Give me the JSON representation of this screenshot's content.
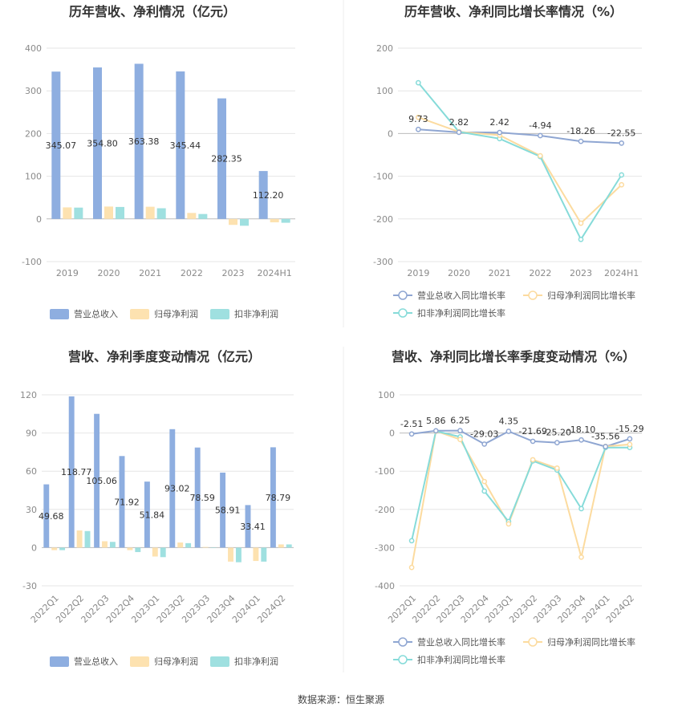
{
  "footer": {
    "source": "数据来源：恒生聚源"
  },
  "colors": {
    "revenue": "#8eaee0",
    "net_profit": "#fde2b0",
    "deducted": "#9fe0e0",
    "line_revenue": "#8fa6d2",
    "line_net": "#fcdb9f",
    "line_deducted": "#86dbd9"
  },
  "chart_data": [
    {
      "id": "annual_amount",
      "type": "bar",
      "title": "历年营收、净利情况（亿元）",
      "categories": [
        "2019",
        "2020",
        "2021",
        "2022",
        "2023",
        "2024H1"
      ],
      "ylim": [
        -100,
        400
      ],
      "yticks": [
        -100,
        0,
        100,
        200,
        300,
        400
      ],
      "legend": "bottom",
      "series": [
        {
          "name": "营业总收入",
          "values": [
            345.07,
            354.8,
            363.38,
            345.44,
            282.35,
            112.2
          ],
          "labels": [
            "345.07",
            "354.80",
            "363.38",
            "345.44",
            "282.35",
            "112.20"
          ]
        },
        {
          "name": "归母净利润",
          "values": [
            27.0,
            29.0,
            28.5,
            14.0,
            -14.0,
            -8.0
          ]
        },
        {
          "name": "扣非净利润",
          "values": [
            26.5,
            28.0,
            25.0,
            11.5,
            -16.0,
            -9.0
          ]
        }
      ]
    },
    {
      "id": "annual_growth",
      "type": "line",
      "title": "历年营收、净利同比增长率情况（%）",
      "categories": [
        "2019",
        "2020",
        "2021",
        "2022",
        "2023",
        "2024H1"
      ],
      "ylim": [
        -300,
        200
      ],
      "yticks": [
        -300,
        -200,
        -100,
        0,
        100,
        200
      ],
      "legend": "bottom",
      "series": [
        {
          "name": "营业总收入同比增长率",
          "values": [
            9.73,
            2.82,
            2.42,
            -4.94,
            -18.26,
            -22.55
          ],
          "labels": [
            "9.73",
            "2.82",
            "2.42",
            "-4.94",
            "-18.26",
            "-22.55"
          ]
        },
        {
          "name": "归母净利润同比增长率",
          "values": [
            38,
            4,
            -4,
            -52,
            -210,
            -120
          ]
        },
        {
          "name": "扣非净利润同比增长率",
          "values": [
            119,
            4,
            -12,
            -54,
            -248,
            -97
          ]
        }
      ]
    },
    {
      "id": "quarterly_amount",
      "type": "bar",
      "title": "营收、净利季度变动情况（亿元）",
      "categories": [
        "2022Q1",
        "2022Q2",
        "2022Q3",
        "2022Q4",
        "2023Q1",
        "2023Q2",
        "2023Q3",
        "2023Q4",
        "2024Q1",
        "2024Q2"
      ],
      "ylim": [
        -30,
        120
      ],
      "yticks": [
        -30,
        0,
        30,
        60,
        90,
        120
      ],
      "legend": "bottom",
      "series": [
        {
          "name": "营业总收入",
          "values": [
            49.68,
            118.77,
            105.06,
            71.92,
            51.84,
            93.02,
            78.59,
            58.91,
            33.41,
            78.79
          ],
          "labels": [
            "49.68",
            "118.77",
            "105.06",
            "71.92",
            "51.84",
            "93.02",
            "78.59",
            "58.91",
            "33.41",
            "78.79"
          ]
        },
        {
          "name": "归母净利润",
          "values": [
            -2.0,
            13.5,
            5.0,
            -2.0,
            -7.0,
            4.0,
            0.5,
            -11.0,
            -10.5,
            2.5
          ]
        },
        {
          "name": "扣非净利润",
          "values": [
            -2.0,
            13.0,
            4.5,
            -3.5,
            -7.5,
            3.5,
            0.0,
            -11.5,
            -11.0,
            2.5
          ]
        }
      ]
    },
    {
      "id": "quarterly_growth",
      "type": "line",
      "title": "营收、净利同比增长率季度变动情况（%）",
      "categories": [
        "2022Q1",
        "2022Q2",
        "2022Q3",
        "2022Q4",
        "2023Q1",
        "2023Q2",
        "2023Q3",
        "2023Q4",
        "2024Q1",
        "2024Q2"
      ],
      "ylim": [
        -400,
        100
      ],
      "yticks": [
        -400,
        -300,
        -200,
        -100,
        0,
        100
      ],
      "legend": "bottom",
      "series": [
        {
          "name": "营业总收入同比增长率",
          "values": [
            -2.51,
            5.86,
            6.25,
            -29.03,
            4.35,
            -21.69,
            -25.2,
            -18.1,
            -35.56,
            -15.29
          ],
          "labels": [
            "-2.51",
            "5.86",
            "6.25",
            "-29.03",
            "4.35",
            "-21.69",
            "-25.20",
            "-18.10",
            "-35.56",
            "-15.29"
          ]
        },
        {
          "name": "归母净利润同比增长率",
          "values": [
            -352,
            5,
            -17,
            -127,
            -238,
            -70,
            -92,
            -325,
            -35,
            -30
          ]
        },
        {
          "name": "扣非净利润同比增长率",
          "values": [
            -282,
            5,
            -10,
            -152,
            -232,
            -73,
            -97,
            -198,
            -38,
            -38
          ]
        }
      ]
    }
  ]
}
